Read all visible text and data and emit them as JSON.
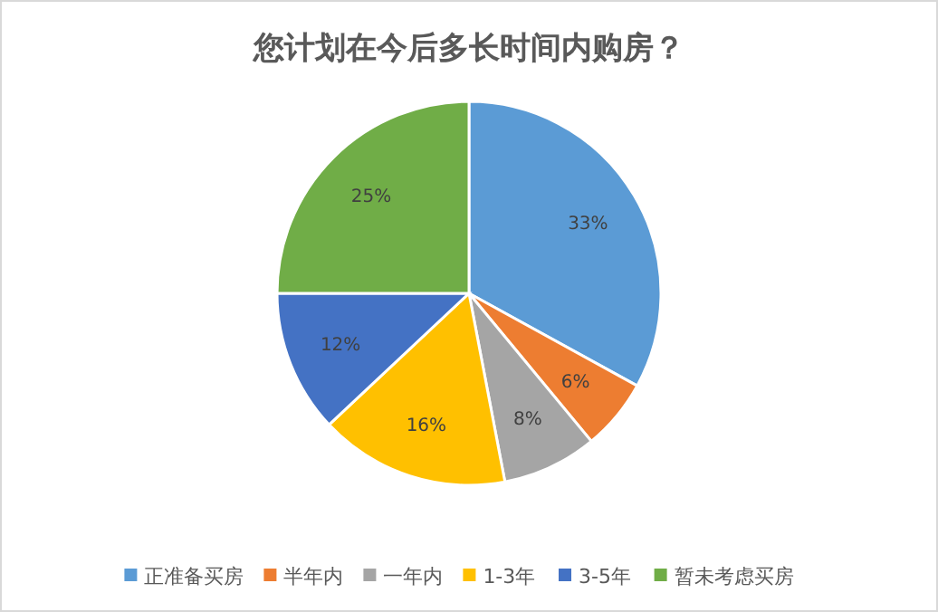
{
  "chart_data": {
    "type": "pie",
    "title": "您计划在今后多长时间内购房？",
    "categories": [
      "正准备买房",
      "半年内",
      "一年内",
      "1-3年",
      "3-5年",
      "暂未考虑买房"
    ],
    "values": [
      33,
      6,
      8,
      16,
      12,
      25
    ],
    "colors": [
      "#5b9bd5",
      "#ed7d31",
      "#a5a5a5",
      "#ffc000",
      "#4472c4",
      "#70ad47"
    ],
    "value_labels": [
      "33%",
      "6%",
      "8%",
      "16%",
      "12%",
      "25%"
    ],
    "legend": "bottom"
  }
}
